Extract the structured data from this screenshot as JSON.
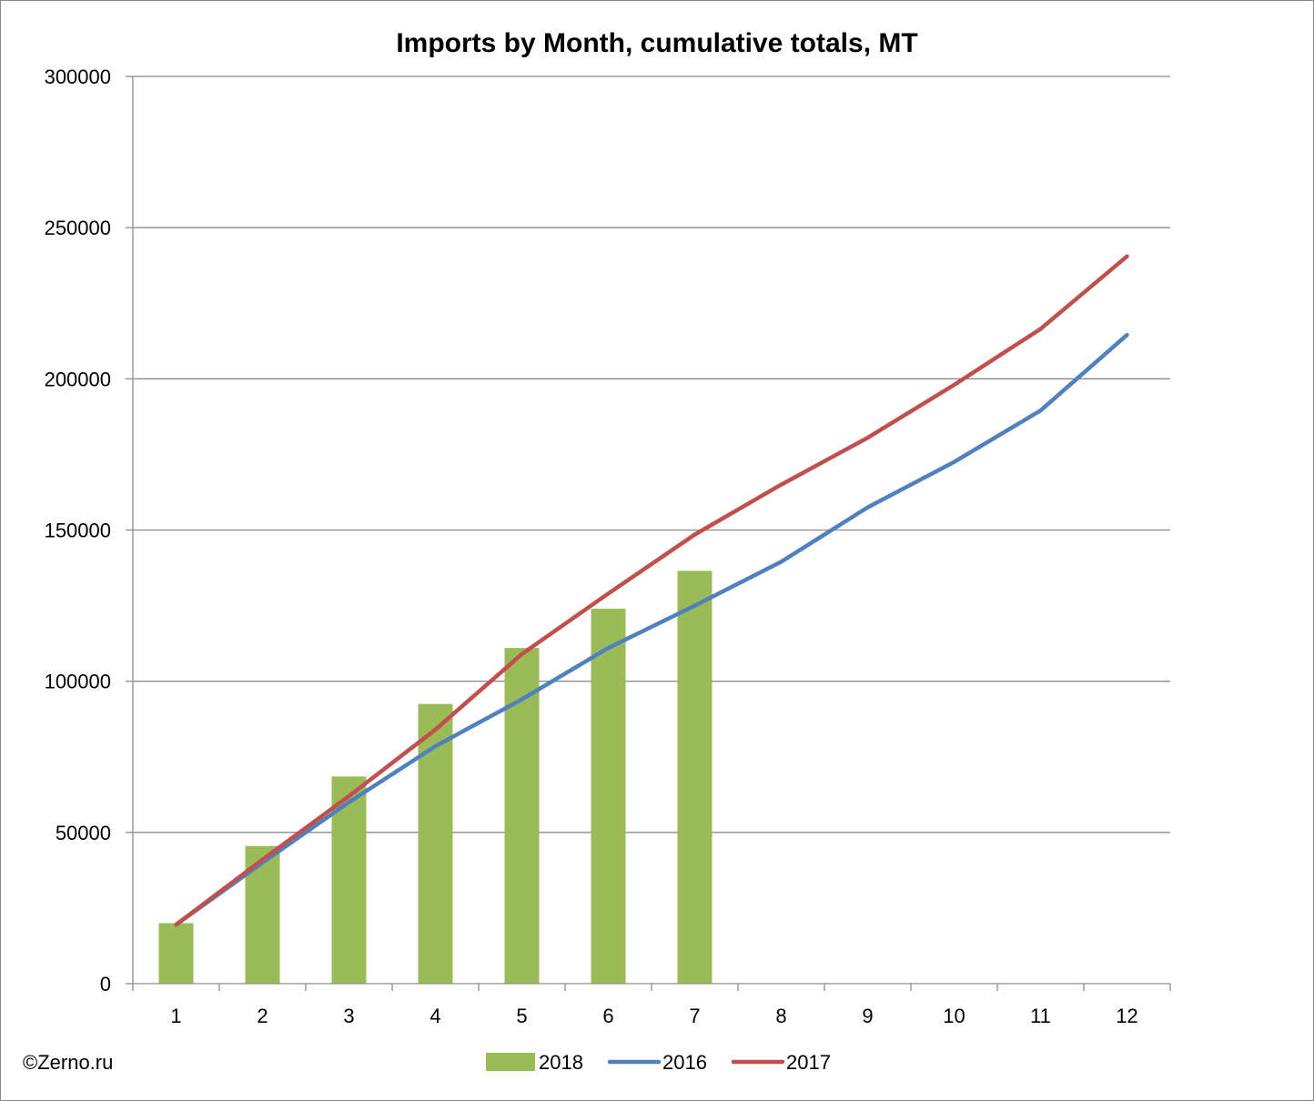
{
  "chart_data": {
    "type": "bar",
    "title": "Imports by Month, cumulative totals, MT",
    "xlabel": "",
    "ylabel": "",
    "categories": [
      "1",
      "2",
      "3",
      "4",
      "5",
      "6",
      "7",
      "8",
      "9",
      "10",
      "11",
      "12"
    ],
    "ylim": [
      0,
      300000
    ],
    "yticks": [
      "0",
      "50000",
      "100000",
      "150000",
      "200000",
      "250000",
      "300000"
    ],
    "grid": true,
    "legend_position": "bottom",
    "series": [
      {
        "name": "2018",
        "type": "bar",
        "color": "#9BBB59",
        "values": [
          20000,
          45500,
          68500,
          92500,
          111000,
          124000,
          136500,
          null,
          null,
          null,
          null,
          null
        ]
      },
      {
        "name": "2016",
        "type": "line",
        "color": "#4F81BD",
        "values": [
          19500,
          40000,
          60000,
          78500,
          94000,
          111000,
          125000,
          139500,
          157500,
          172500,
          189500,
          214500
        ]
      },
      {
        "name": "2017",
        "type": "line",
        "color": "#C0504D",
        "values": [
          19500,
          41000,
          62000,
          84000,
          109000,
          129000,
          148500,
          165000,
          180500,
          198000,
          216500,
          240500
        ]
      }
    ]
  },
  "credit": "©Zerno.ru"
}
